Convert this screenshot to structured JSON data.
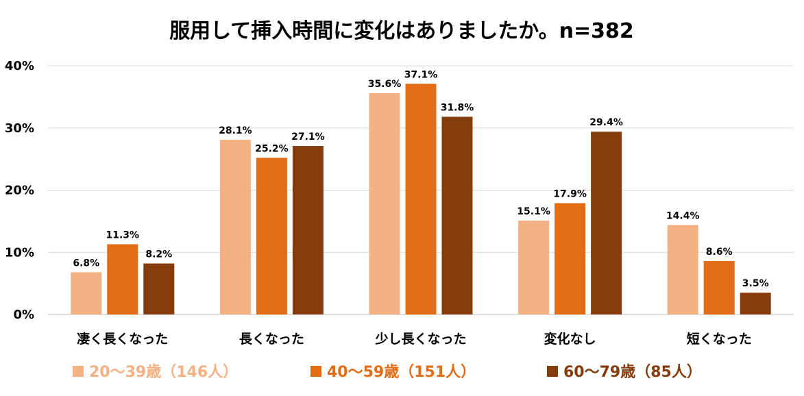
{
  "chart_data": {
    "type": "bar",
    "title": "服用して挿入時間に変化はありましたか。n=382",
    "xlabel": "",
    "ylabel": "",
    "ylim": [
      0,
      40
    ],
    "y_ticks": [
      "0%",
      "10%",
      "20%",
      "30%",
      "40%"
    ],
    "y_tick_values": [
      0,
      10,
      20,
      30,
      40
    ],
    "grid": true,
    "legend_position": "bottom",
    "categories": [
      "凄く長くなった",
      "長くなった",
      "少し長くなった",
      "変化なし",
      "短くなった"
    ],
    "series": [
      {
        "name": "20～39歳（146人）",
        "color": "#F4B183",
        "values": [
          6.8,
          28.1,
          35.6,
          15.1,
          14.4
        ],
        "labels": [
          "6.8%",
          "28.1%",
          "35.6%",
          "15.1%",
          "14.4%"
        ]
      },
      {
        "name": "40～59歳（151人）",
        "color": "#E36C16",
        "values": [
          11.3,
          25.2,
          37.1,
          17.9,
          8.6
        ],
        "labels": [
          "11.3%",
          "25.2%",
          "37.1%",
          "17.9%",
          "8.6%"
        ]
      },
      {
        "name": "60～79歳（85人）",
        "color": "#843C0C",
        "values": [
          8.2,
          27.1,
          31.8,
          29.4,
          3.5
        ],
        "labels": [
          "8.2%",
          "27.1%",
          "31.8%",
          "29.4%",
          "3.5%"
        ]
      }
    ]
  }
}
